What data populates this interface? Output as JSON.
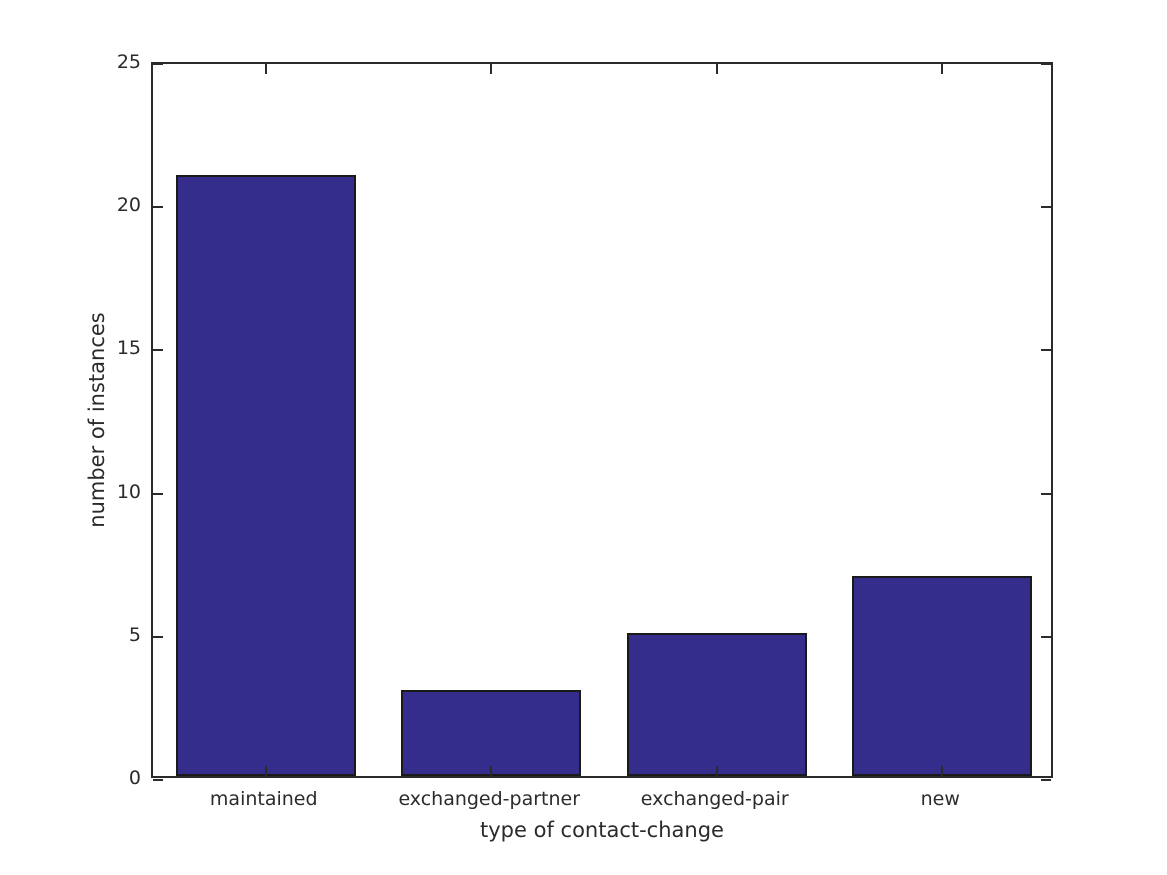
{
  "chart_data": {
    "type": "bar",
    "categories": [
      "maintained",
      "exchanged-partner",
      "exchanged-pair",
      "new"
    ],
    "values": [
      21,
      3,
      5,
      7
    ],
    "title": "",
    "xlabel": "type of contact-change",
    "ylabel": "number of instances",
    "ylim": [
      0,
      25
    ],
    "yticks": [
      0,
      5,
      10,
      15,
      20,
      25
    ],
    "bar_width_fraction": 0.8,
    "bar_color": "#352D8B",
    "bar_edge_color": "#1a1a1a",
    "axis_color": "#2b2b2b",
    "background_color": "#ffffff",
    "grid": false,
    "legend_position": "none"
  }
}
